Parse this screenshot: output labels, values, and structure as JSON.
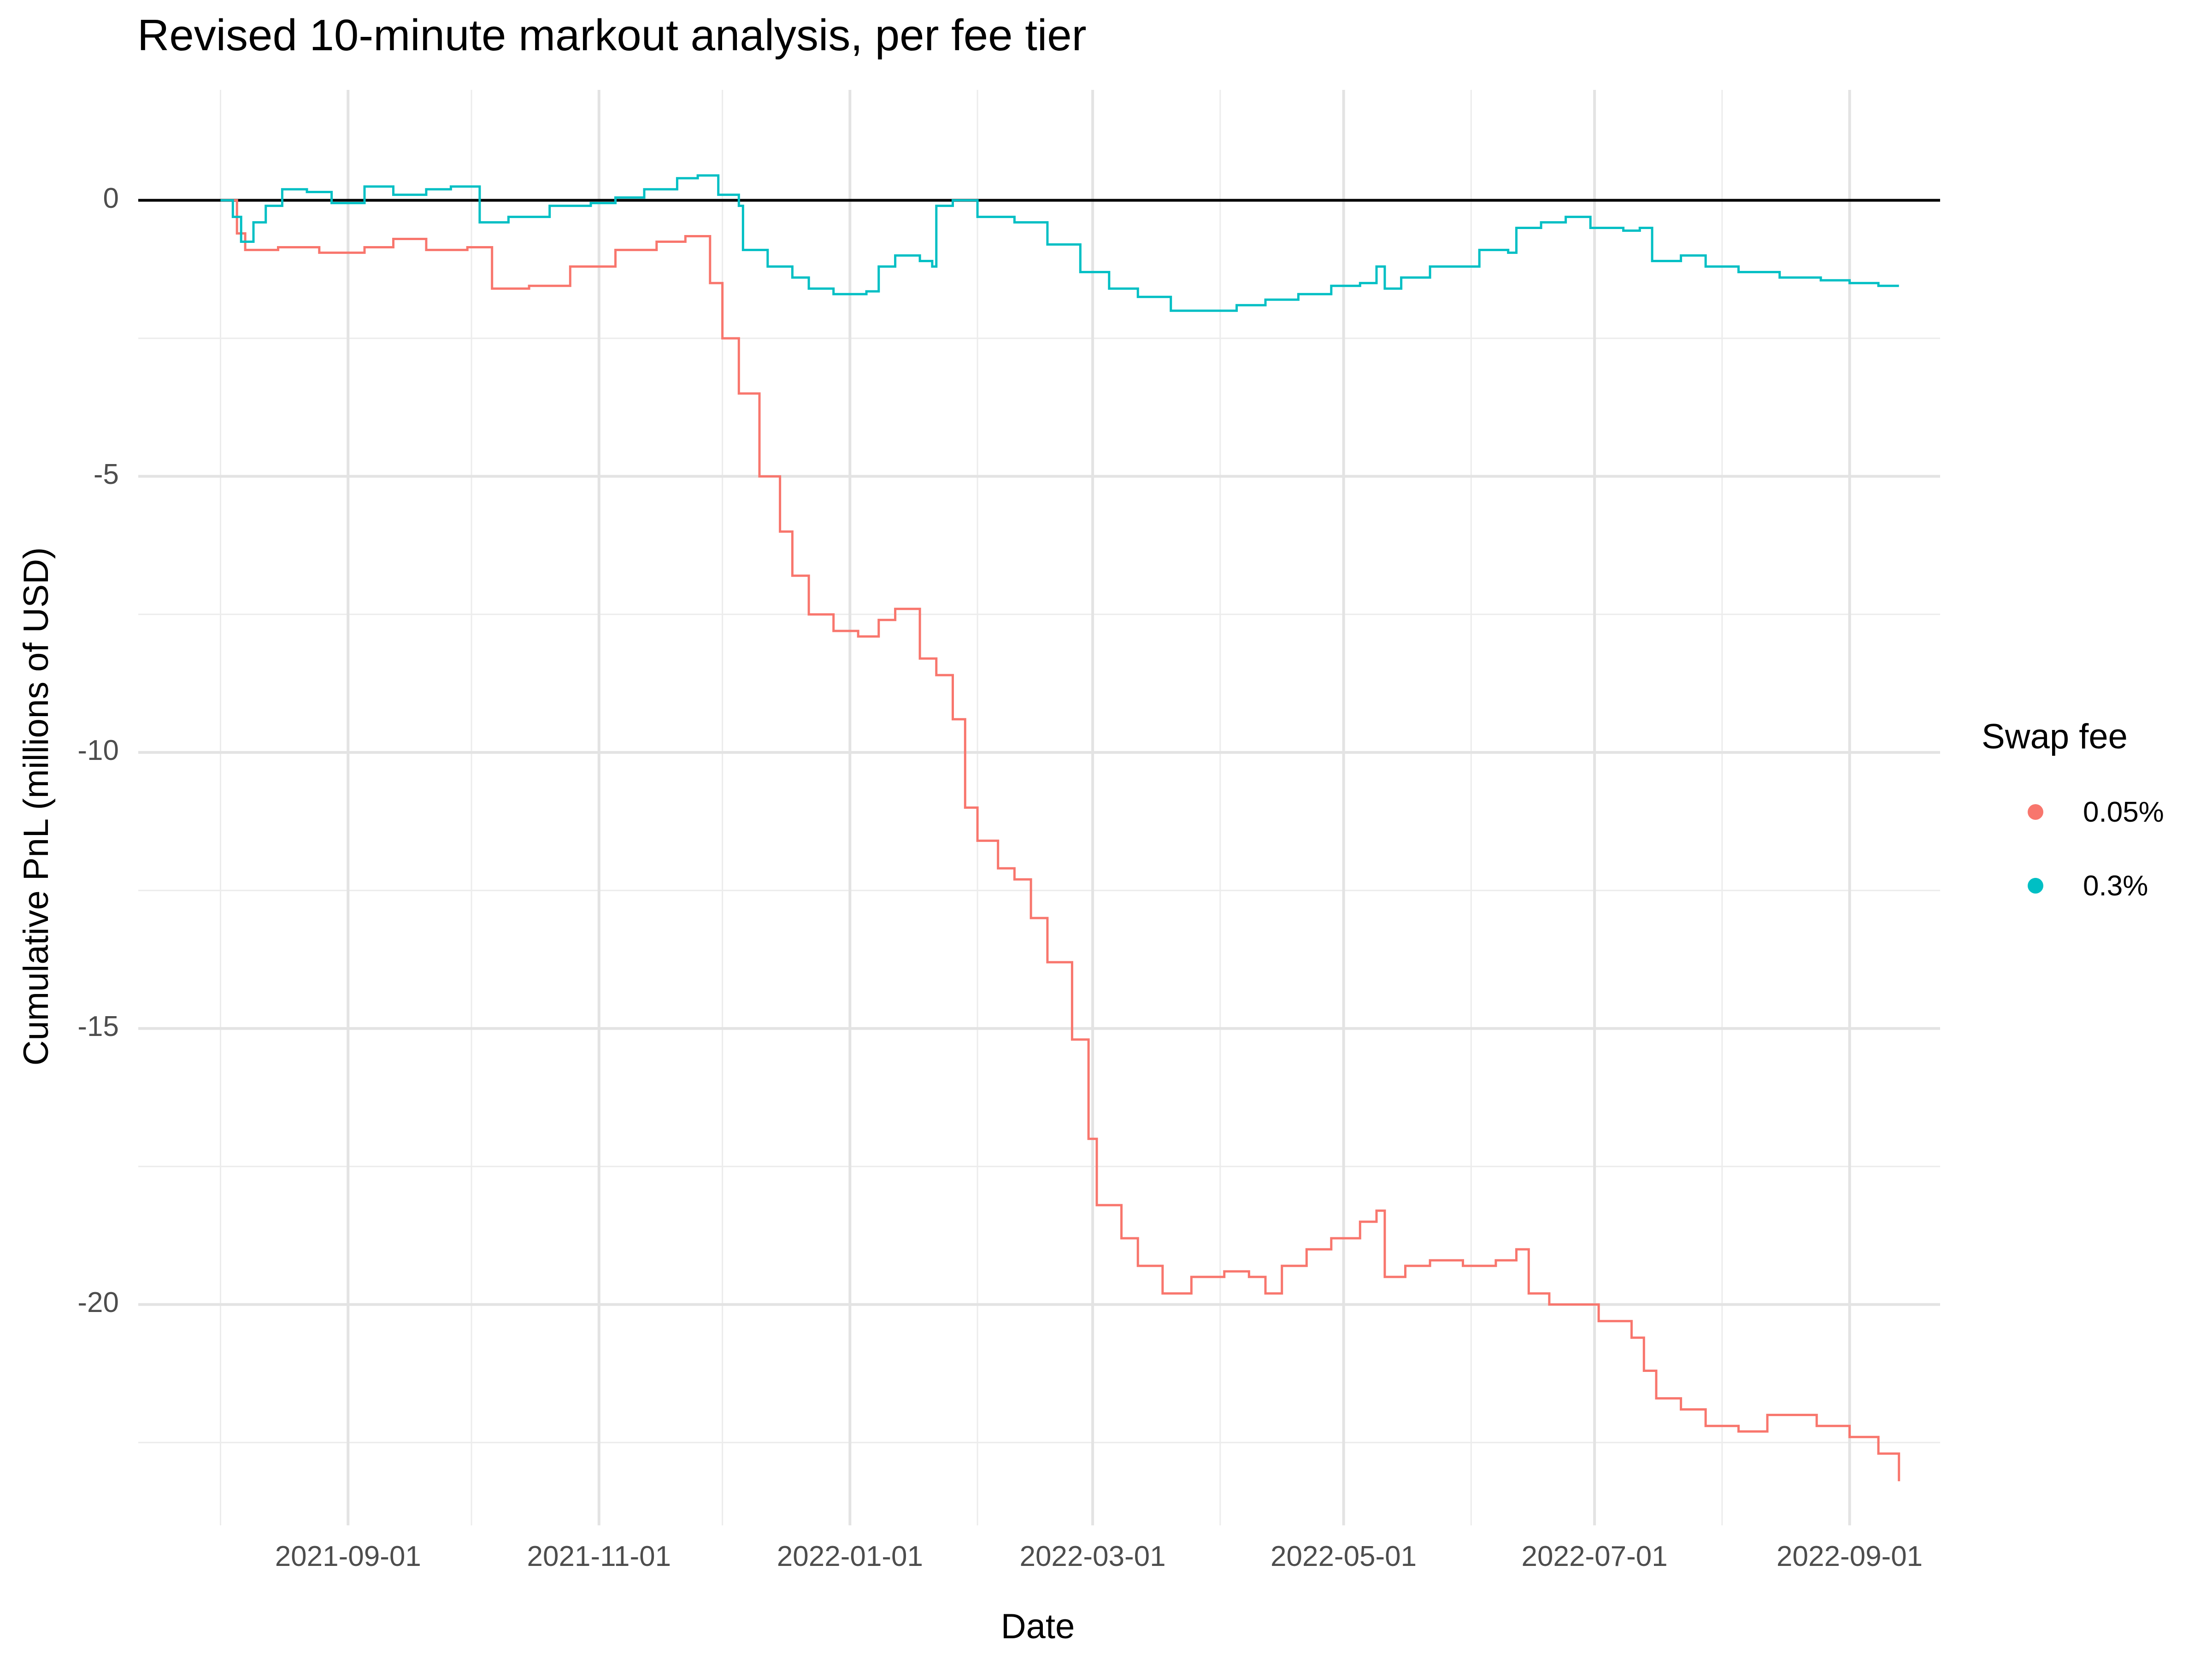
{
  "title": "Revised 10-minute markout analysis, per fee tier",
  "chart_data": {
    "type": "line",
    "title": "Revised 10-minute markout analysis, per fee tier",
    "xlabel": "Date",
    "ylabel": "Cumulative PnL (millions of USD)",
    "x_ticks": [
      "2021-09-01",
      "2021-11-01",
      "2022-01-01",
      "2022-03-01",
      "2022-05-01",
      "2022-07-01",
      "2022-09-01"
    ],
    "y_ticks": [
      0,
      -5,
      -10,
      -15,
      -20
    ],
    "xlim": [
      "2021-07-12",
      "2022-09-23"
    ],
    "ylim": [
      -24,
      2
    ],
    "hline": 0,
    "grid": true,
    "legend": {
      "title": "Swap fee",
      "position": "right"
    },
    "series": [
      {
        "name": "0.05%",
        "color": "#F8766D",
        "points": [
          [
            "2021-08-01",
            0.0
          ],
          [
            "2021-08-05",
            -0.6
          ],
          [
            "2021-08-07",
            -0.9
          ],
          [
            "2021-08-15",
            -0.85
          ],
          [
            "2021-08-25",
            -0.95
          ],
          [
            "2021-09-05",
            -0.85
          ],
          [
            "2021-09-12",
            -0.7
          ],
          [
            "2021-09-20",
            -0.9
          ],
          [
            "2021-09-30",
            -0.85
          ],
          [
            "2021-10-06",
            -1.6
          ],
          [
            "2021-10-15",
            -1.55
          ],
          [
            "2021-10-25",
            -1.2
          ],
          [
            "2021-11-05",
            -0.9
          ],
          [
            "2021-11-15",
            -0.75
          ],
          [
            "2021-11-22",
            -0.65
          ],
          [
            "2021-11-28",
            -1.5
          ],
          [
            "2021-12-01",
            -2.5
          ],
          [
            "2021-12-05",
            -3.5
          ],
          [
            "2021-12-10",
            -5.0
          ],
          [
            "2021-12-15",
            -6.0
          ],
          [
            "2021-12-18",
            -6.8
          ],
          [
            "2021-12-22",
            -7.5
          ],
          [
            "2021-12-28",
            -7.8
          ],
          [
            "2022-01-03",
            -7.9
          ],
          [
            "2022-01-08",
            -7.6
          ],
          [
            "2022-01-12",
            -7.4
          ],
          [
            "2022-01-18",
            -8.3
          ],
          [
            "2022-01-22",
            -8.6
          ],
          [
            "2022-01-26",
            -9.4
          ],
          [
            "2022-01-29",
            -11.0
          ],
          [
            "2022-02-01",
            -11.6
          ],
          [
            "2022-02-06",
            -12.1
          ],
          [
            "2022-02-10",
            -12.3
          ],
          [
            "2022-02-14",
            -13.0
          ],
          [
            "2022-02-18",
            -13.8
          ],
          [
            "2022-02-24",
            -15.2
          ],
          [
            "2022-02-28",
            -17.0
          ],
          [
            "2022-03-02",
            -18.2
          ],
          [
            "2022-03-08",
            -18.8
          ],
          [
            "2022-03-12",
            -19.3
          ],
          [
            "2022-03-18",
            -19.8
          ],
          [
            "2022-03-25",
            -19.5
          ],
          [
            "2022-04-02",
            -19.4
          ],
          [
            "2022-04-08",
            -19.5
          ],
          [
            "2022-04-12",
            -19.8
          ],
          [
            "2022-04-16",
            -19.3
          ],
          [
            "2022-04-22",
            -19.0
          ],
          [
            "2022-04-28",
            -18.8
          ],
          [
            "2022-05-05",
            -18.5
          ],
          [
            "2022-05-09",
            -18.3
          ],
          [
            "2022-05-11",
            -19.5
          ],
          [
            "2022-05-16",
            -19.3
          ],
          [
            "2022-05-22",
            -19.2
          ],
          [
            "2022-05-30",
            -19.3
          ],
          [
            "2022-06-07",
            -19.2
          ],
          [
            "2022-06-12",
            -19.0
          ],
          [
            "2022-06-15",
            -19.8
          ],
          [
            "2022-06-20",
            -20.0
          ],
          [
            "2022-06-30",
            -20.0
          ],
          [
            "2022-07-02",
            -20.3
          ],
          [
            "2022-07-10",
            -20.6
          ],
          [
            "2022-07-13",
            -21.2
          ],
          [
            "2022-07-16",
            -21.7
          ],
          [
            "2022-07-22",
            -21.9
          ],
          [
            "2022-07-28",
            -22.2
          ],
          [
            "2022-08-05",
            -22.3
          ],
          [
            "2022-08-12",
            -22.0
          ],
          [
            "2022-08-20",
            -22.0
          ],
          [
            "2022-08-24",
            -22.2
          ],
          [
            "2022-09-01",
            -22.4
          ],
          [
            "2022-09-08",
            -22.7
          ],
          [
            "2022-09-13",
            -23.2
          ]
        ]
      },
      {
        "name": "0.3%",
        "color": "#00BFC4",
        "points": [
          [
            "2021-08-01",
            0.0
          ],
          [
            "2021-08-04",
            -0.3
          ],
          [
            "2021-08-06",
            -0.75
          ],
          [
            "2021-08-09",
            -0.4
          ],
          [
            "2021-08-12",
            -0.1
          ],
          [
            "2021-08-16",
            0.2
          ],
          [
            "2021-08-22",
            0.15
          ],
          [
            "2021-08-28",
            -0.05
          ],
          [
            "2021-09-05",
            0.25
          ],
          [
            "2021-09-12",
            0.1
          ],
          [
            "2021-09-20",
            0.2
          ],
          [
            "2021-09-26",
            0.25
          ],
          [
            "2021-10-03",
            -0.4
          ],
          [
            "2021-10-10",
            -0.3
          ],
          [
            "2021-10-20",
            -0.1
          ],
          [
            "2021-10-30",
            -0.05
          ],
          [
            "2021-11-05",
            0.05
          ],
          [
            "2021-11-12",
            0.2
          ],
          [
            "2021-11-20",
            0.4
          ],
          [
            "2021-11-25",
            0.45
          ],
          [
            "2021-11-30",
            0.1
          ],
          [
            "2021-12-05",
            -0.1
          ],
          [
            "2021-12-06",
            -0.9
          ],
          [
            "2021-12-12",
            -1.2
          ],
          [
            "2021-12-18",
            -1.4
          ],
          [
            "2021-12-22",
            -1.6
          ],
          [
            "2021-12-28",
            -1.7
          ],
          [
            "2022-01-05",
            -1.65
          ],
          [
            "2022-01-08",
            -1.2
          ],
          [
            "2022-01-12",
            -1.0
          ],
          [
            "2022-01-18",
            -1.1
          ],
          [
            "2022-01-21",
            -1.2
          ],
          [
            "2022-01-22",
            -0.1
          ],
          [
            "2022-01-26",
            0.0
          ],
          [
            "2022-02-01",
            -0.3
          ],
          [
            "2022-02-10",
            -0.4
          ],
          [
            "2022-02-18",
            -0.8
          ],
          [
            "2022-02-26",
            -1.3
          ],
          [
            "2022-03-05",
            -1.6
          ],
          [
            "2022-03-12",
            -1.75
          ],
          [
            "2022-03-20",
            -2.0
          ],
          [
            "2022-03-30",
            -2.0
          ],
          [
            "2022-04-05",
            -1.9
          ],
          [
            "2022-04-12",
            -1.8
          ],
          [
            "2022-04-20",
            -1.7
          ],
          [
            "2022-04-28",
            -1.55
          ],
          [
            "2022-05-05",
            -1.5
          ],
          [
            "2022-05-09",
            -1.2
          ],
          [
            "2022-05-11",
            -1.6
          ],
          [
            "2022-05-15",
            -1.4
          ],
          [
            "2022-05-22",
            -1.2
          ],
          [
            "2022-05-30",
            -1.2
          ],
          [
            "2022-06-03",
            -0.9
          ],
          [
            "2022-06-10",
            -0.95
          ],
          [
            "2022-06-12",
            -0.5
          ],
          [
            "2022-06-18",
            -0.4
          ],
          [
            "2022-06-24",
            -0.3
          ],
          [
            "2022-06-30",
            -0.5
          ],
          [
            "2022-07-08",
            -0.55
          ],
          [
            "2022-07-12",
            -0.5
          ],
          [
            "2022-07-15",
            -1.1
          ],
          [
            "2022-07-22",
            -1.0
          ],
          [
            "2022-07-28",
            -1.2
          ],
          [
            "2022-08-05",
            -1.3
          ],
          [
            "2022-08-15",
            -1.4
          ],
          [
            "2022-08-25",
            -1.45
          ],
          [
            "2022-09-01",
            -1.5
          ],
          [
            "2022-09-08",
            -1.55
          ],
          [
            "2022-09-13",
            -1.55
          ]
        ]
      }
    ]
  }
}
